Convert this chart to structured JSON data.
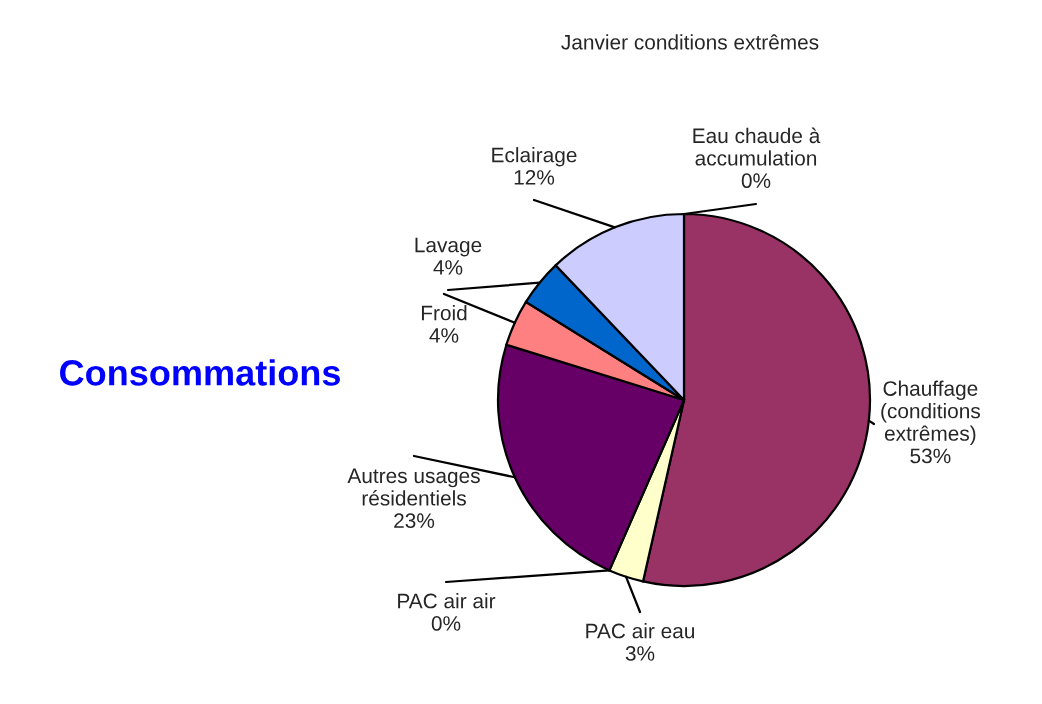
{
  "chart_data": {
    "type": "pie",
    "title": "Janvier conditions extrêmes",
    "annotations": [
      "Consommations"
    ],
    "categories": [
      "Chauffage\n(conditions\nextrêmes)",
      "PAC air eau",
      "PAC air air",
      "Autres usages\nrésidentiels",
      "Froid",
      "Lavage",
      "Eclairage",
      "Eau chaude à\naccumulation"
    ],
    "values": [
      53,
      3,
      0,
      23,
      4,
      4,
      12,
      0
    ],
    "value_labels": [
      "53%",
      "3%",
      "0%",
      "23%",
      "4%",
      "4%",
      "12%",
      "0%"
    ],
    "colors": [
      "#993366",
      "#ffffcc",
      "#ffffcc",
      "#660066",
      "#ff8080",
      "#0066cc",
      "#ccccff",
      "#ccccff"
    ]
  }
}
